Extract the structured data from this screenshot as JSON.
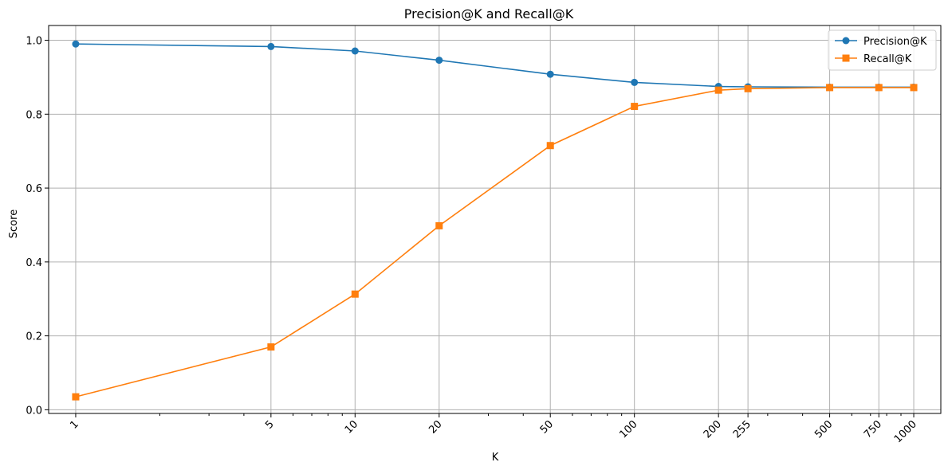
{
  "chart_data": {
    "type": "line",
    "title": "Precision@K and Recall@K",
    "xlabel": "K",
    "ylabel": "Score",
    "xscale": "log",
    "xlim": [
      0.8,
      1250
    ],
    "ylim": [
      -0.01,
      1.04
    ],
    "x": [
      1,
      5,
      10,
      20,
      50,
      100,
      200,
      255,
      500,
      750,
      1000
    ],
    "x_tick_labels": [
      "1",
      "5",
      "10",
      "20",
      "50",
      "100",
      "200",
      "255",
      "500",
      "750",
      "1000"
    ],
    "y_ticks": [
      0.0,
      0.2,
      0.4,
      0.6,
      0.8,
      1.0
    ],
    "y_tick_labels": [
      "0.0",
      "0.2",
      "0.4",
      "0.6",
      "0.8",
      "1.0"
    ],
    "grid": true,
    "legend_position": "top-right",
    "series": [
      {
        "name": "Precision@K",
        "color": "#1f77b4",
        "marker": "circle",
        "values": [
          0.99,
          0.983,
          0.971,
          0.946,
          0.908,
          0.886,
          0.875,
          0.874,
          0.873,
          0.873,
          0.873
        ]
      },
      {
        "name": "Recall@K",
        "color": "#ff7f0e",
        "marker": "square",
        "values": [
          0.035,
          0.17,
          0.313,
          0.498,
          0.715,
          0.821,
          0.865,
          0.869,
          0.872,
          0.872,
          0.872
        ]
      }
    ]
  }
}
